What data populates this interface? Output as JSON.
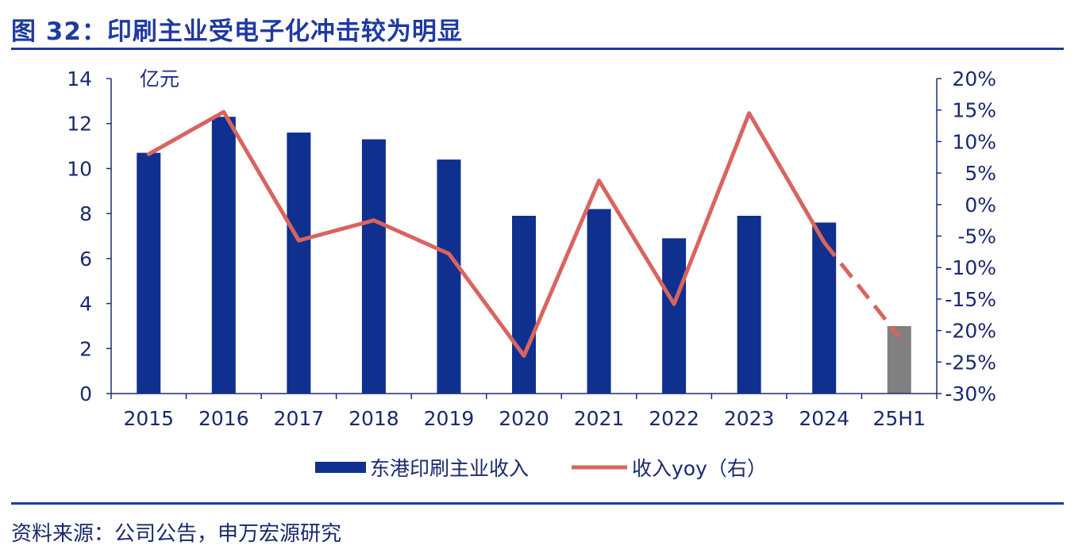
{
  "title": "图 32：印刷主业受电子化冲击较为明显",
  "source": "资料来源：公司公告，申万宏源研究",
  "colors": {
    "bar": "#10308f",
    "bar_estimate": "#808080",
    "line": "#d9645f",
    "axis": "#1f2d7a",
    "rule": "#1f3aa0"
  },
  "chart_data": {
    "type": "bar",
    "categories": [
      "2015",
      "2016",
      "2017",
      "2018",
      "2019",
      "2020",
      "2021",
      "2022",
      "2023",
      "2024",
      "25H1"
    ],
    "left_axis": {
      "unit_label": "亿元",
      "ylim": [
        0,
        14
      ],
      "ticks": [
        "0",
        "2",
        "4",
        "6",
        "8",
        "10",
        "12",
        "14"
      ]
    },
    "right_axis": {
      "ylim": [
        -30,
        20
      ],
      "ticks": [
        "-30%",
        "-25%",
        "-20%",
        "-15%",
        "-10%",
        "-5%",
        "0%",
        "5%",
        "10%",
        "15%",
        "20%"
      ]
    },
    "series": [
      {
        "name": "东港印刷主业收入",
        "type": "bar",
        "axis": "left",
        "values": [
          10.7,
          12.3,
          11.6,
          11.3,
          10.4,
          7.9,
          8.2,
          6.9,
          7.9,
          7.6,
          3.0
        ]
      },
      {
        "name": "收入yoy（右）",
        "type": "line",
        "axis": "right",
        "values": [
          8.0,
          14.7,
          -5.7,
          -2.5,
          -7.8,
          -24.0,
          3.8,
          -15.8,
          14.5,
          -6.0,
          -21.0
        ],
        "dashed_last_segment": true
      }
    ],
    "legend": [
      {
        "name": "东港印刷主业收入",
        "marker": "bar"
      },
      {
        "name": "收入yoy（右）",
        "marker": "line"
      }
    ],
    "legend_position": "bottom-center",
    "grid": false
  }
}
